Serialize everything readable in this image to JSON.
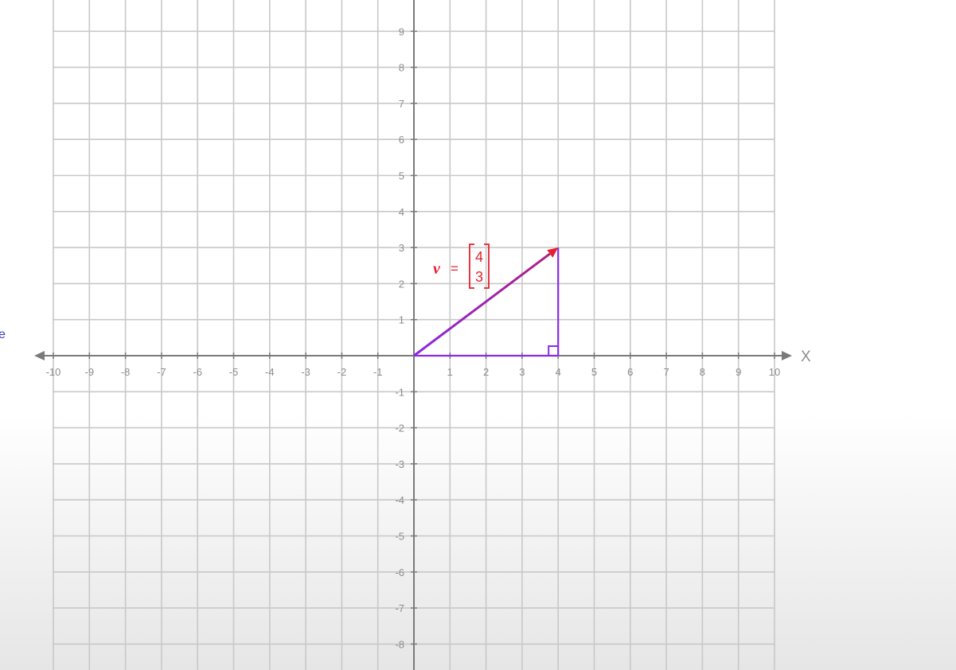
{
  "diagram": {
    "x_range": [
      -10,
      10
    ],
    "y_range": [
      -8,
      9
    ],
    "x_axis_label": "X",
    "x_tick_labels": [
      "-10",
      "-9",
      "-8",
      "-7",
      "-6",
      "-5",
      "-4",
      "-3",
      "-2",
      "-1",
      "1",
      "2",
      "3",
      "4",
      "5",
      "6",
      "7",
      "8",
      "9",
      "10"
    ],
    "y_tick_labels": [
      "9",
      "8",
      "7",
      "6",
      "5",
      "4",
      "3",
      "2",
      "1",
      "-1",
      "-2",
      "-3",
      "-4",
      "-5",
      "-6",
      "-7",
      "-8"
    ],
    "vector": {
      "name": "v",
      "equals": "=",
      "components": [
        "4",
        "3"
      ],
      "tail": [
        0,
        0
      ],
      "head": [
        4,
        3
      ],
      "color": "#e5202f"
    },
    "triangle": {
      "vertices": [
        [
          0,
          0
        ],
        [
          4,
          0
        ],
        [
          4,
          3
        ]
      ],
      "color": "#8a2be2",
      "right_angle_at": [
        4,
        0
      ]
    },
    "grid_color": "#c8c8c8",
    "axis_color": "#7a7a7a"
  },
  "edge_fragment": "e"
}
